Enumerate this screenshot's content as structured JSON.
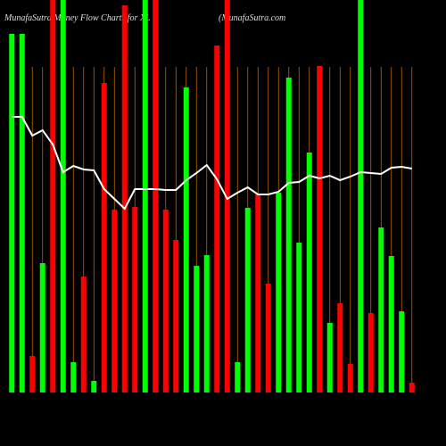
{
  "chart_data": {
    "type": "bar",
    "title": "MunafaSutra  Money Flow  Charts for XL",
    "subtitle": "(MunafaSutra.com",
    "categories": [
      null,
      null,
      null,
      null,
      null,
      null,
      null,
      null,
      null,
      null,
      null,
      null,
      null,
      null,
      null,
      null,
      null,
      null,
      null,
      null,
      null,
      null,
      null,
      null,
      null,
      null,
      null,
      null,
      null,
      null,
      null,
      null,
      null,
      null,
      null,
      null,
      null,
      null,
      null,
      null
    ],
    "values": [
      402,
      402,
      41,
      145,
      440,
      440,
      34,
      130,
      13,
      347,
      205,
      434,
      208,
      440,
      440,
      205,
      171,
      342,
      142,
      154,
      389,
      440,
      34,
      207,
      222,
      122,
      224,
      353,
      168,
      269,
      366,
      78,
      100,
      32,
      440,
      89,
      185,
      153,
      91,
      11
    ],
    "colors": [
      "#00ff00",
      "#00ff00",
      "#ff0000",
      "#00ff00",
      "#ff0000",
      "#00ff00",
      "#00ff00",
      "#ff0000",
      "#00ff00",
      "#ff0000",
      "#ff0000",
      "#ff0000",
      "#ff0000",
      "#00ff00",
      "#ff0000",
      "#ff0000",
      "#ff0000",
      "#00ff00",
      "#00ff00",
      "#00ff00",
      "#ff0000",
      "#ff0000",
      "#00ff00",
      "#00ff00",
      "#ff0000",
      "#ff0000",
      "#00ff00",
      "#00ff00",
      "#00ff00",
      "#00ff00",
      "#ff0000",
      "#00ff00",
      "#ff0000",
      "#ff0000",
      "#00ff00",
      "#ff0000",
      "#00ff00",
      "#00ff00",
      "#00ff00",
      "#ff0000"
    ],
    "line": {
      "color": "#ffffff",
      "values": [
        309,
        309,
        288,
        294,
        278,
        247,
        254,
        250,
        249,
        228,
        217,
        206,
        228,
        228,
        228,
        227,
        227,
        238,
        246,
        255,
        239,
        217,
        224,
        230,
        222,
        222,
        225,
        235,
        236,
        243,
        240,
        243,
        238,
        242,
        247,
        246,
        245,
        252,
        253,
        251
      ]
    },
    "ylim": [
      0,
      440
    ],
    "grid_color": "#b8650a"
  }
}
